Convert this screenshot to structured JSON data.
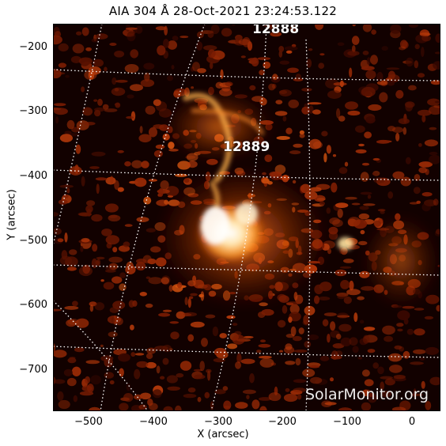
{
  "title": "AIA 304 Å 28-Oct-2021 23:24:53.122",
  "axes": {
    "xlabel": "X (arcsec)",
    "ylabel": "Y (arcsec)",
    "xticks": [
      "−500",
      "−400",
      "−300",
      "−200",
      "−100",
      "0"
    ],
    "yticks": [
      "−200",
      "−300",
      "−400",
      "−500",
      "−600",
      "−700"
    ]
  },
  "regions": {
    "ar1": "12888",
    "ar2": "12889"
  },
  "watermark": "SolarMonitor.org",
  "colors": {
    "background": "#120100",
    "plage": "#c0360a",
    "bright": "#ffd98a",
    "core": "#ffffff",
    "grid": "#ffffff"
  }
}
